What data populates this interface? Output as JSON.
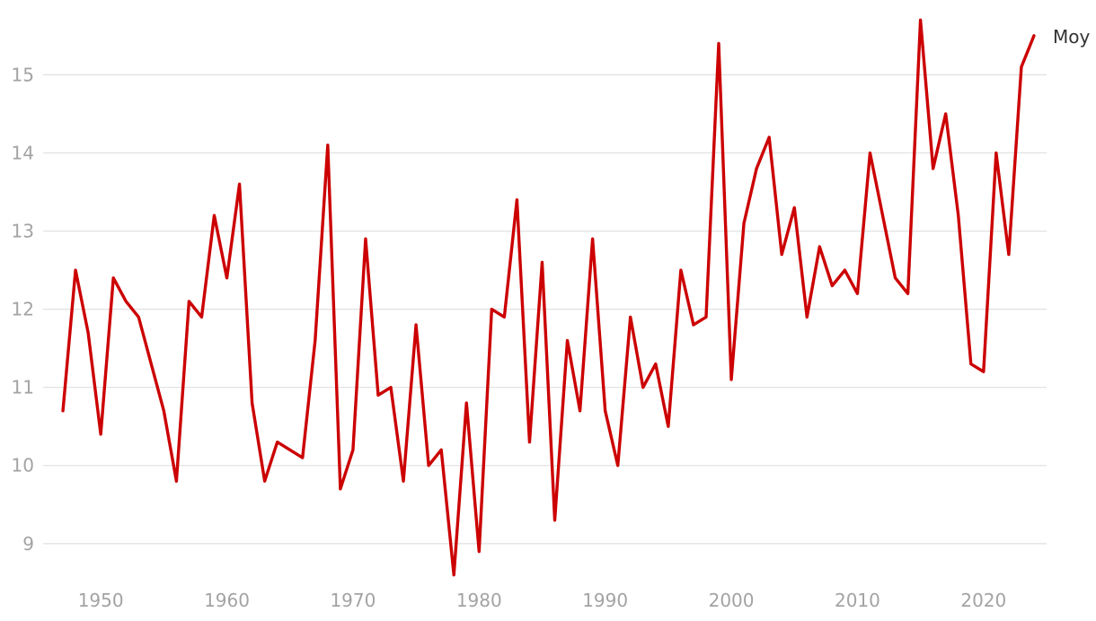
{
  "chart_data": {
    "type": "line",
    "x": [
      1947,
      1948,
      1949,
      1950,
      1951,
      1952,
      1953,
      1954,
      1955,
      1956,
      1957,
      1958,
      1959,
      1960,
      1961,
      1962,
      1963,
      1964,
      1965,
      1966,
      1967,
      1968,
      1969,
      1970,
      1971,
      1972,
      1973,
      1974,
      1975,
      1976,
      1977,
      1978,
      1979,
      1980,
      1981,
      1982,
      1983,
      1984,
      1985,
      1986,
      1987,
      1988,
      1989,
      1990,
      1991,
      1992,
      1993,
      1994,
      1995,
      1996,
      1997,
      1998,
      1999,
      2000,
      2001,
      2002,
      2003,
      2004,
      2005,
      2006,
      2007,
      2008,
      2009,
      2010,
      2011,
      2012,
      2013,
      2014,
      2015,
      2016,
      2017,
      2018,
      2019,
      2020,
      2021,
      2022,
      2023,
      2024
    ],
    "series": [
      {
        "name": "Moy",
        "color": "#cc0000",
        "values": [
          10.7,
          12.5,
          11.7,
          10.4,
          12.4,
          12.1,
          11.9,
          11.3,
          10.7,
          9.8,
          12.1,
          11.9,
          13.2,
          12.4,
          13.6,
          10.8,
          9.8,
          10.3,
          10.2,
          10.1,
          11.6,
          14.1,
          9.7,
          10.2,
          12.9,
          10.9,
          11.0,
          9.8,
          11.8,
          10.0,
          10.2,
          8.6,
          10.8,
          8.9,
          12.0,
          11.9,
          13.4,
          10.3,
          12.6,
          9.3,
          11.6,
          10.7,
          12.9,
          10.7,
          10.0,
          11.9,
          11.0,
          11.3,
          10.5,
          12.5,
          11.8,
          11.9,
          15.4,
          11.1,
          13.1,
          13.8,
          14.2,
          12.7,
          13.3,
          11.9,
          12.8,
          12.3,
          12.5,
          12.2,
          14.0,
          13.2,
          12.4,
          12.2,
          15.7,
          13.8,
          14.5,
          13.2,
          11.3,
          11.2,
          14.0,
          12.7,
          15.1,
          15.5
        ]
      }
    ],
    "x_ticks": [
      1950,
      1960,
      1970,
      1980,
      1990,
      2000,
      2010,
      2020
    ],
    "y_ticks": [
      9,
      10,
      11,
      12,
      13,
      14,
      15
    ],
    "xlim": [
      1946,
      2025
    ],
    "ylim": [
      8.55,
      15.75
    ],
    "grid": "horizontal",
    "legend": "inline label at end of line",
    "title": "",
    "xlabel": "",
    "ylabel": ""
  }
}
